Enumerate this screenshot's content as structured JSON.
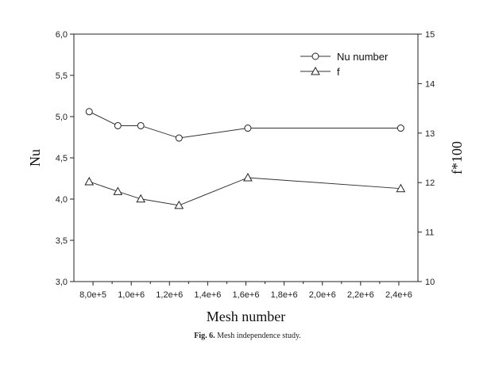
{
  "chart_data": {
    "type": "line",
    "x": [
      780000,
      930000,
      1050000,
      1250000,
      1610000,
      2410000
    ],
    "series": [
      {
        "name": "Nu number",
        "axis": "left",
        "marker": "circle",
        "values": [
          5.06,
          4.89,
          4.89,
          4.74,
          4.86,
          4.86
        ]
      },
      {
        "name": "f",
        "axis": "right",
        "marker": "triangle",
        "values": [
          12.02,
          11.82,
          11.67,
          11.54,
          12.1,
          11.88
        ]
      }
    ],
    "xlabel": "Mesh number",
    "ylabel": "Nu",
    "y2label": "f*100",
    "xlim": [
      700000,
      2500000
    ],
    "ylim": [
      3.0,
      6.0
    ],
    "y2lim": [
      10,
      15
    ],
    "xticks": [
      "8,0e+5",
      "1,0e+6",
      "1,2e+6",
      "1,4e+6",
      "1,6e+6",
      "1,8e+6",
      "2,0e+6",
      "2,2e+6",
      "2,4e+6"
    ],
    "xtick_values": [
      800000,
      1000000,
      1200000,
      1400000,
      1600000,
      1800000,
      2000000,
      2200000,
      2400000
    ],
    "yticks": [
      "3,0",
      "3,5",
      "4,0",
      "4,5",
      "5,0",
      "5,5",
      "6,0"
    ],
    "ytick_values": [
      3.0,
      3.5,
      4.0,
      4.5,
      5.0,
      5.5,
      6.0
    ],
    "y2ticks": [
      "10",
      "11",
      "12",
      "13",
      "14",
      "15"
    ],
    "y2tick_values": [
      10,
      11,
      12,
      13,
      14,
      15
    ],
    "grid": false,
    "legend_position": "top-right"
  },
  "caption": {
    "label": "Fig. 6.",
    "text": "Mesh independence study."
  }
}
